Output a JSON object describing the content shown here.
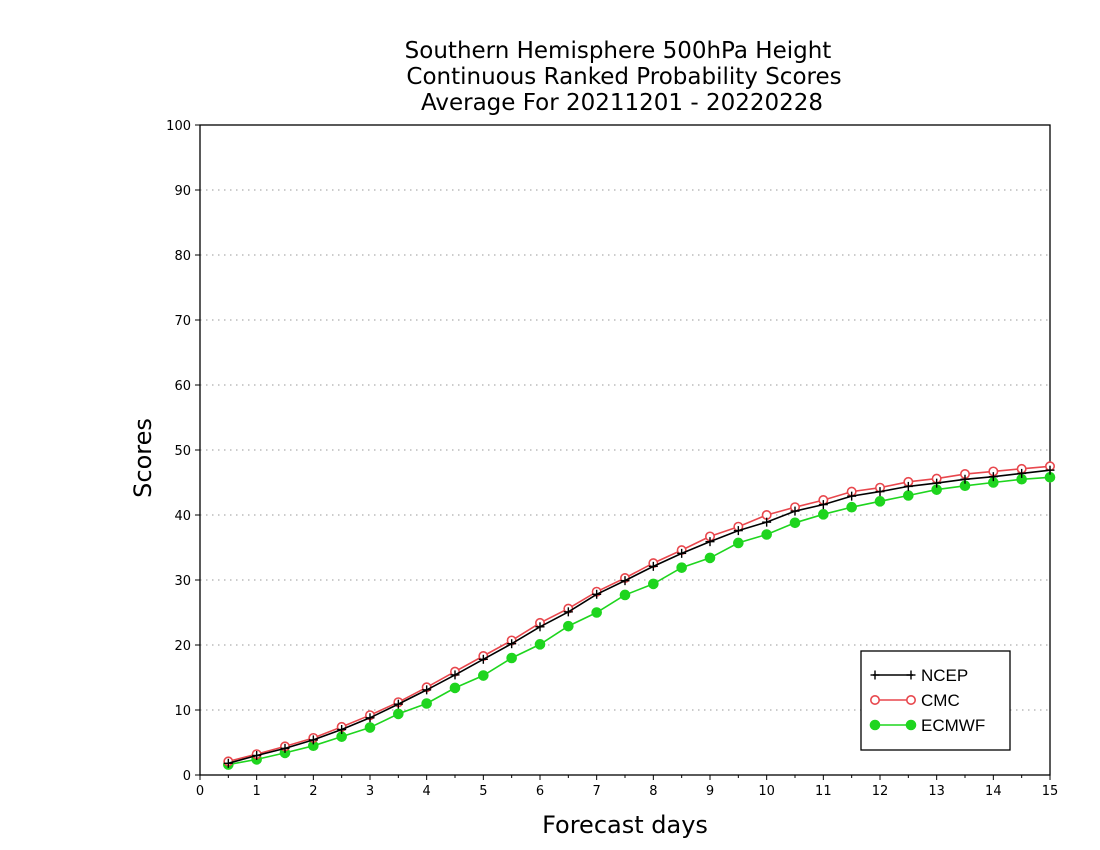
{
  "chart_data": {
    "type": "line",
    "title_lines": [
      "Southern Hemisphere 500hPa Height",
      "Continuous Ranked Probability Scores",
      "Average For 20211201 - 20220228"
    ],
    "xlabel": "Forecast days",
    "ylabel": "Scores",
    "xlim": [
      0,
      15
    ],
    "ylim": [
      0,
      100
    ],
    "x_ticks": [
      0,
      1,
      2,
      3,
      4,
      5,
      6,
      7,
      8,
      9,
      10,
      11,
      12,
      13,
      14,
      15
    ],
    "y_ticks": [
      0,
      10,
      20,
      30,
      40,
      50,
      60,
      70,
      80,
      90,
      100
    ],
    "grid": "horizontal dotted",
    "legend_position": "bottom-right",
    "x": [
      0.5,
      1,
      1.5,
      2,
      2.5,
      3,
      3.5,
      4,
      4.5,
      5,
      5.5,
      6,
      6.5,
      7,
      7.5,
      8,
      8.5,
      9,
      9.5,
      10,
      10.5,
      11,
      11.5,
      12,
      12.5,
      13,
      13.5,
      14,
      14.5,
      15
    ],
    "series": [
      {
        "name": "NCEP",
        "color": "#000000",
        "marker": "plus",
        "values": [
          1.8,
          3.0,
          4.1,
          5.4,
          7.0,
          8.8,
          10.9,
          13.1,
          15.4,
          17.8,
          20.2,
          22.8,
          25.1,
          27.8,
          29.9,
          32.1,
          34.1,
          35.9,
          37.6,
          38.9,
          40.6,
          41.6,
          42.9,
          43.6,
          44.4,
          44.9,
          45.5,
          45.9,
          46.4,
          46.9
        ]
      },
      {
        "name": "CMC",
        "color": "#e8474d",
        "marker": "open-circle",
        "values": [
          2.1,
          3.2,
          4.4,
          5.7,
          7.4,
          9.2,
          11.2,
          13.5,
          15.9,
          18.3,
          20.7,
          23.4,
          25.6,
          28.2,
          30.3,
          32.6,
          34.6,
          36.7,
          38.2,
          40.0,
          41.2,
          42.3,
          43.6,
          44.2,
          45.1,
          45.6,
          46.3,
          46.7,
          47.1,
          47.5
        ]
      },
      {
        "name": "ECMWF",
        "color": "#1ed51e",
        "marker": "filled-circle",
        "values": [
          1.6,
          2.4,
          3.4,
          4.5,
          5.9,
          7.3,
          9.4,
          11.0,
          13.4,
          15.3,
          18.0,
          20.1,
          22.9,
          25.0,
          27.7,
          29.4,
          31.9,
          33.4,
          35.7,
          37.0,
          38.8,
          40.1,
          41.2,
          42.1,
          43.0,
          43.9,
          44.5,
          45.0,
          45.5,
          45.8
        ]
      }
    ]
  }
}
